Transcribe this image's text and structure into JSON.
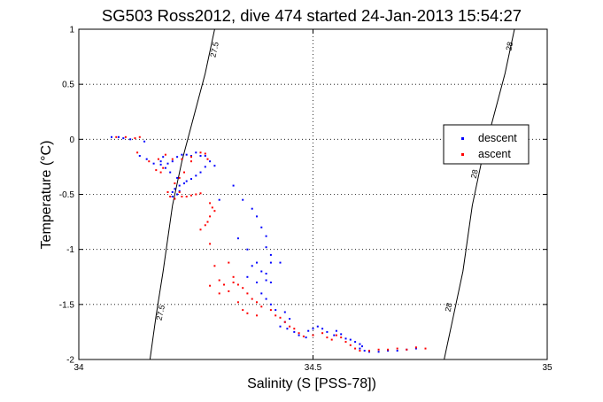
{
  "chart_data": {
    "type": "scatter",
    "title": "SG503 Ross2012, dive 474 started 24-Jan-2013 15:54:27",
    "xlabel": "Salinity (S [PSS-78])",
    "ylabel": "Temperature (°C)",
    "xlim": [
      34,
      35
    ],
    "ylim": [
      -2,
      1
    ],
    "x_ticks": [
      34,
      34.5,
      35
    ],
    "x_tick_labels": [
      "34",
      "34.5",
      "35"
    ],
    "y_ticks": [
      -2,
      -1.5,
      -1,
      -0.5,
      0,
      0.5,
      1
    ],
    "y_tick_labels": [
      "-2",
      "-1.5",
      "-1",
      "-0.5",
      "0",
      "0.5",
      "1"
    ],
    "grid": true,
    "legend_position": "right",
    "density_contours": [
      {
        "label": "27.5",
        "points": [
          [
            34.29,
            1.0
          ],
          [
            34.27,
            0.6
          ],
          [
            34.245,
            0.2
          ],
          [
            34.22,
            -0.2
          ],
          [
            34.2,
            -0.6
          ],
          [
            34.18,
            -1.2
          ],
          [
            34.165,
            -1.6
          ],
          [
            34.152,
            -2.0
          ]
        ],
        "label_positions": [
          [
            34.295,
            0.81
          ],
          [
            34.18,
            -1.58
          ]
        ]
      },
      {
        "label": "28",
        "points": [
          [
            34.93,
            1.0
          ],
          [
            34.91,
            0.6
          ],
          [
            34.885,
            0.2
          ],
          [
            34.86,
            -0.2
          ],
          [
            34.84,
            -0.6
          ],
          [
            34.82,
            -1.2
          ],
          [
            34.8,
            -1.6
          ],
          [
            34.78,
            -2.0
          ]
        ],
        "label_positions": [
          [
            34.925,
            0.84
          ],
          [
            34.85,
            -0.32
          ],
          [
            34.795,
            -1.53
          ]
        ]
      }
    ],
    "series": [
      {
        "name": "descent",
        "color": "#0000ff",
        "points": [
          [
            34.07,
            0.02
          ],
          [
            34.085,
            0.02
          ],
          [
            34.095,
            0.01
          ],
          [
            34.11,
            0.0
          ],
          [
            34.14,
            -0.02
          ],
          [
            34.13,
            -0.15
          ],
          [
            34.145,
            -0.18
          ],
          [
            34.16,
            -0.22
          ],
          [
            34.175,
            -0.2
          ],
          [
            34.18,
            -0.16
          ],
          [
            34.19,
            -0.22
          ],
          [
            34.2,
            -0.2
          ],
          [
            34.21,
            -0.16
          ],
          [
            34.22,
            -0.14
          ],
          [
            34.23,
            -0.14
          ],
          [
            34.24,
            -0.15
          ],
          [
            34.25,
            -0.12
          ],
          [
            34.26,
            -0.15
          ],
          [
            34.27,
            -0.15
          ],
          [
            34.28,
            -0.2
          ],
          [
            34.29,
            -0.24
          ],
          [
            34.27,
            -0.25
          ],
          [
            34.26,
            -0.3
          ],
          [
            34.25,
            -0.33
          ],
          [
            34.24,
            -0.36
          ],
          [
            34.23,
            -0.38
          ],
          [
            34.215,
            -0.42
          ],
          [
            34.205,
            -0.45
          ],
          [
            34.2,
            -0.48
          ],
          [
            34.21,
            -0.5
          ],
          [
            34.2,
            -0.52
          ],
          [
            34.215,
            -0.47
          ],
          [
            34.225,
            -0.4
          ],
          [
            34.21,
            -0.35
          ],
          [
            34.195,
            -0.3
          ],
          [
            34.185,
            -0.26
          ],
          [
            34.175,
            -0.23
          ],
          [
            34.33,
            -0.42
          ],
          [
            34.35,
            -0.55
          ],
          [
            34.37,
            -0.63
          ],
          [
            34.38,
            -0.7
          ],
          [
            34.39,
            -0.8
          ],
          [
            34.4,
            -0.88
          ],
          [
            34.4,
            -0.98
          ],
          [
            34.41,
            -1.05
          ],
          [
            34.41,
            -1.12
          ],
          [
            34.38,
            -1.12
          ],
          [
            34.39,
            -1.2
          ],
          [
            34.4,
            -1.22
          ],
          [
            34.4,
            -1.28
          ],
          [
            34.41,
            -1.3
          ],
          [
            34.38,
            -1.3
          ],
          [
            34.39,
            -1.4
          ],
          [
            34.4,
            -1.45
          ],
          [
            34.41,
            -1.5
          ],
          [
            34.42,
            -1.55
          ],
          [
            34.44,
            -1.57
          ],
          [
            34.45,
            -1.63
          ],
          [
            34.44,
            -1.66
          ],
          [
            34.43,
            -1.7
          ],
          [
            34.445,
            -1.72
          ],
          [
            34.46,
            -1.75
          ],
          [
            34.47,
            -1.78
          ],
          [
            34.485,
            -1.8
          ],
          [
            34.49,
            -1.74
          ],
          [
            34.5,
            -1.72
          ],
          [
            34.51,
            -1.7
          ],
          [
            34.52,
            -1.72
          ],
          [
            34.53,
            -1.75
          ],
          [
            34.545,
            -1.78
          ],
          [
            34.55,
            -1.74
          ],
          [
            34.56,
            -1.77
          ],
          [
            34.57,
            -1.81
          ],
          [
            34.58,
            -1.82
          ],
          [
            34.59,
            -1.84
          ],
          [
            34.6,
            -1.86
          ],
          [
            34.605,
            -1.88
          ],
          [
            34.6,
            -1.9
          ],
          [
            34.61,
            -1.92
          ],
          [
            34.62,
            -1.93
          ],
          [
            34.64,
            -1.93
          ],
          [
            34.66,
            -1.92
          ],
          [
            34.68,
            -1.92
          ],
          [
            34.7,
            -1.91
          ],
          [
            34.72,
            -1.9
          ],
          [
            34.3,
            -0.55
          ],
          [
            34.34,
            -0.9
          ],
          [
            34.36,
            -1.0
          ],
          [
            34.43,
            -1.12
          ],
          [
            34.37,
            -1.15
          ],
          [
            34.36,
            -1.25
          ]
        ]
      },
      {
        "name": "ascent",
        "color": "#ff0000",
        "points": [
          [
            34.08,
            0.02
          ],
          [
            34.1,
            0.02
          ],
          [
            34.12,
            0.01
          ],
          [
            34.13,
            0.02
          ],
          [
            34.125,
            -0.12
          ],
          [
            34.15,
            -0.2
          ],
          [
            34.165,
            -0.28
          ],
          [
            34.175,
            -0.3
          ],
          [
            34.18,
            -0.26
          ],
          [
            34.17,
            -0.18
          ],
          [
            34.185,
            -0.14
          ],
          [
            34.2,
            -0.18
          ],
          [
            34.22,
            -0.18
          ],
          [
            34.24,
            -0.16
          ],
          [
            34.26,
            -0.12
          ],
          [
            34.27,
            -0.13
          ],
          [
            34.275,
            -0.18
          ],
          [
            34.24,
            -0.2
          ],
          [
            34.225,
            -0.3
          ],
          [
            34.215,
            -0.35
          ],
          [
            34.205,
            -0.4
          ],
          [
            34.215,
            -0.48
          ],
          [
            34.22,
            -0.52
          ],
          [
            34.205,
            -0.54
          ],
          [
            34.195,
            -0.52
          ],
          [
            34.19,
            -0.48
          ],
          [
            34.23,
            -0.52
          ],
          [
            34.24,
            -0.51
          ],
          [
            34.25,
            -0.5
          ],
          [
            34.26,
            -0.49
          ],
          [
            34.28,
            -0.58
          ],
          [
            34.285,
            -0.62
          ],
          [
            34.29,
            -0.65
          ],
          [
            34.28,
            -0.7
          ],
          [
            34.275,
            -0.75
          ],
          [
            34.27,
            -0.78
          ],
          [
            34.26,
            -0.82
          ],
          [
            34.28,
            -0.95
          ],
          [
            34.29,
            -1.15
          ],
          [
            34.3,
            -1.28
          ],
          [
            34.31,
            -1.32
          ],
          [
            34.32,
            -1.12
          ],
          [
            34.33,
            -1.3
          ],
          [
            34.34,
            -1.32
          ],
          [
            34.35,
            -1.35
          ],
          [
            34.36,
            -1.4
          ],
          [
            34.37,
            -1.45
          ],
          [
            34.38,
            -1.48
          ],
          [
            34.39,
            -1.52
          ],
          [
            34.41,
            -1.55
          ],
          [
            34.42,
            -1.6
          ],
          [
            34.43,
            -1.62
          ],
          [
            34.44,
            -1.66
          ],
          [
            34.45,
            -1.7
          ],
          [
            34.46,
            -1.72
          ],
          [
            34.47,
            -1.76
          ],
          [
            34.48,
            -1.79
          ],
          [
            34.5,
            -1.78
          ],
          [
            34.52,
            -1.76
          ],
          [
            34.53,
            -1.8
          ],
          [
            34.54,
            -1.82
          ],
          [
            34.55,
            -1.78
          ],
          [
            34.56,
            -1.8
          ],
          [
            34.57,
            -1.84
          ],
          [
            34.58,
            -1.87
          ],
          [
            34.59,
            -1.9
          ],
          [
            34.6,
            -1.92
          ],
          [
            34.62,
            -1.92
          ],
          [
            34.64,
            -1.91
          ],
          [
            34.66,
            -1.91
          ],
          [
            34.68,
            -1.9
          ],
          [
            34.7,
            -1.91
          ],
          [
            34.72,
            -1.89
          ],
          [
            34.74,
            -1.9
          ],
          [
            34.35,
            -1.55
          ],
          [
            34.36,
            -1.58
          ],
          [
            34.34,
            -1.48
          ],
          [
            34.38,
            -1.6
          ],
          [
            34.33,
            -1.25
          ],
          [
            34.32,
            -1.38
          ],
          [
            34.3,
            -1.4
          ],
          [
            34.28,
            -1.33
          ]
        ]
      }
    ]
  }
}
